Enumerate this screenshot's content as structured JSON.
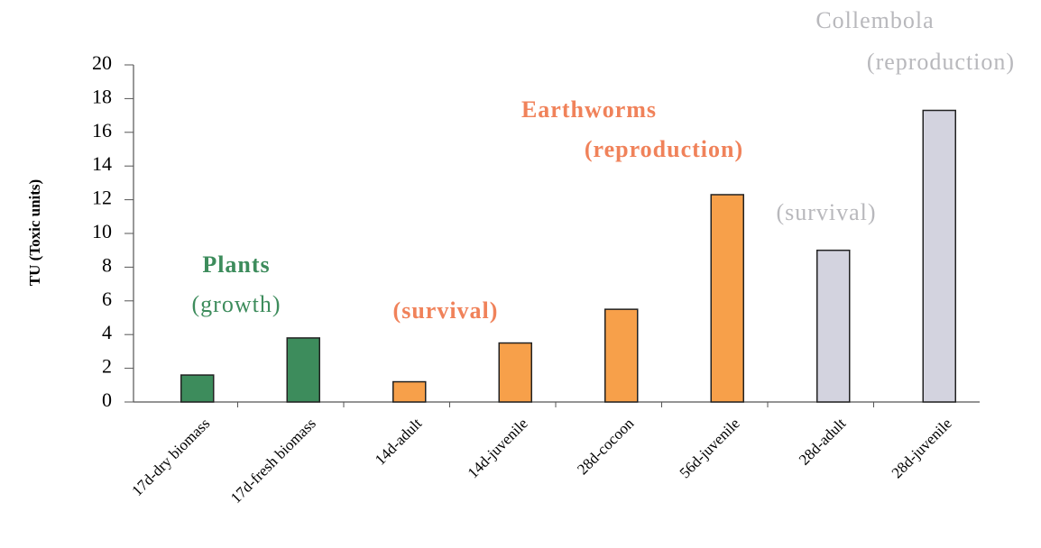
{
  "chart_data": {
    "type": "bar",
    "y_label": "TU (Toxic units)",
    "categories": [
      "17d-dry biomass",
      "17d-fresh biomass",
      "14d-adult",
      "14d-juvenile",
      "28d-cocoon",
      "56d-juvenile",
      "28d-adult",
      "28d-juvenile"
    ],
    "values": [
      1.6,
      3.8,
      1.2,
      3.5,
      5.5,
      12.3,
      9.0,
      17.3
    ],
    "colors": [
      "#3d8c5c",
      "#3d8c5c",
      "#f7a04a",
      "#f7a04a",
      "#f7a04a",
      "#f7a04a",
      "#d3d3df",
      "#d3d3df"
    ],
    "ylim": [
      0,
      20
    ],
    "yticks": [
      0,
      2,
      4,
      6,
      8,
      10,
      12,
      14,
      16,
      18,
      20
    ],
    "grid": false,
    "annotations": [
      {
        "text": "Plants",
        "color": "#3d8c5c"
      },
      {
        "text": "(growth)",
        "color": "#3d8c5c"
      },
      {
        "text": "(survival)",
        "color": "#f0825a"
      },
      {
        "text": "Earthworms",
        "color": "#f0825a"
      },
      {
        "text": "(reproduction)",
        "color": "#f0825a"
      },
      {
        "text": "(survival)",
        "color": "#b8b8bc"
      },
      {
        "text": "Collembola",
        "color": "#b8b8bc"
      },
      {
        "text": "(reproduction)",
        "color": "#b8b8bc"
      }
    ]
  }
}
